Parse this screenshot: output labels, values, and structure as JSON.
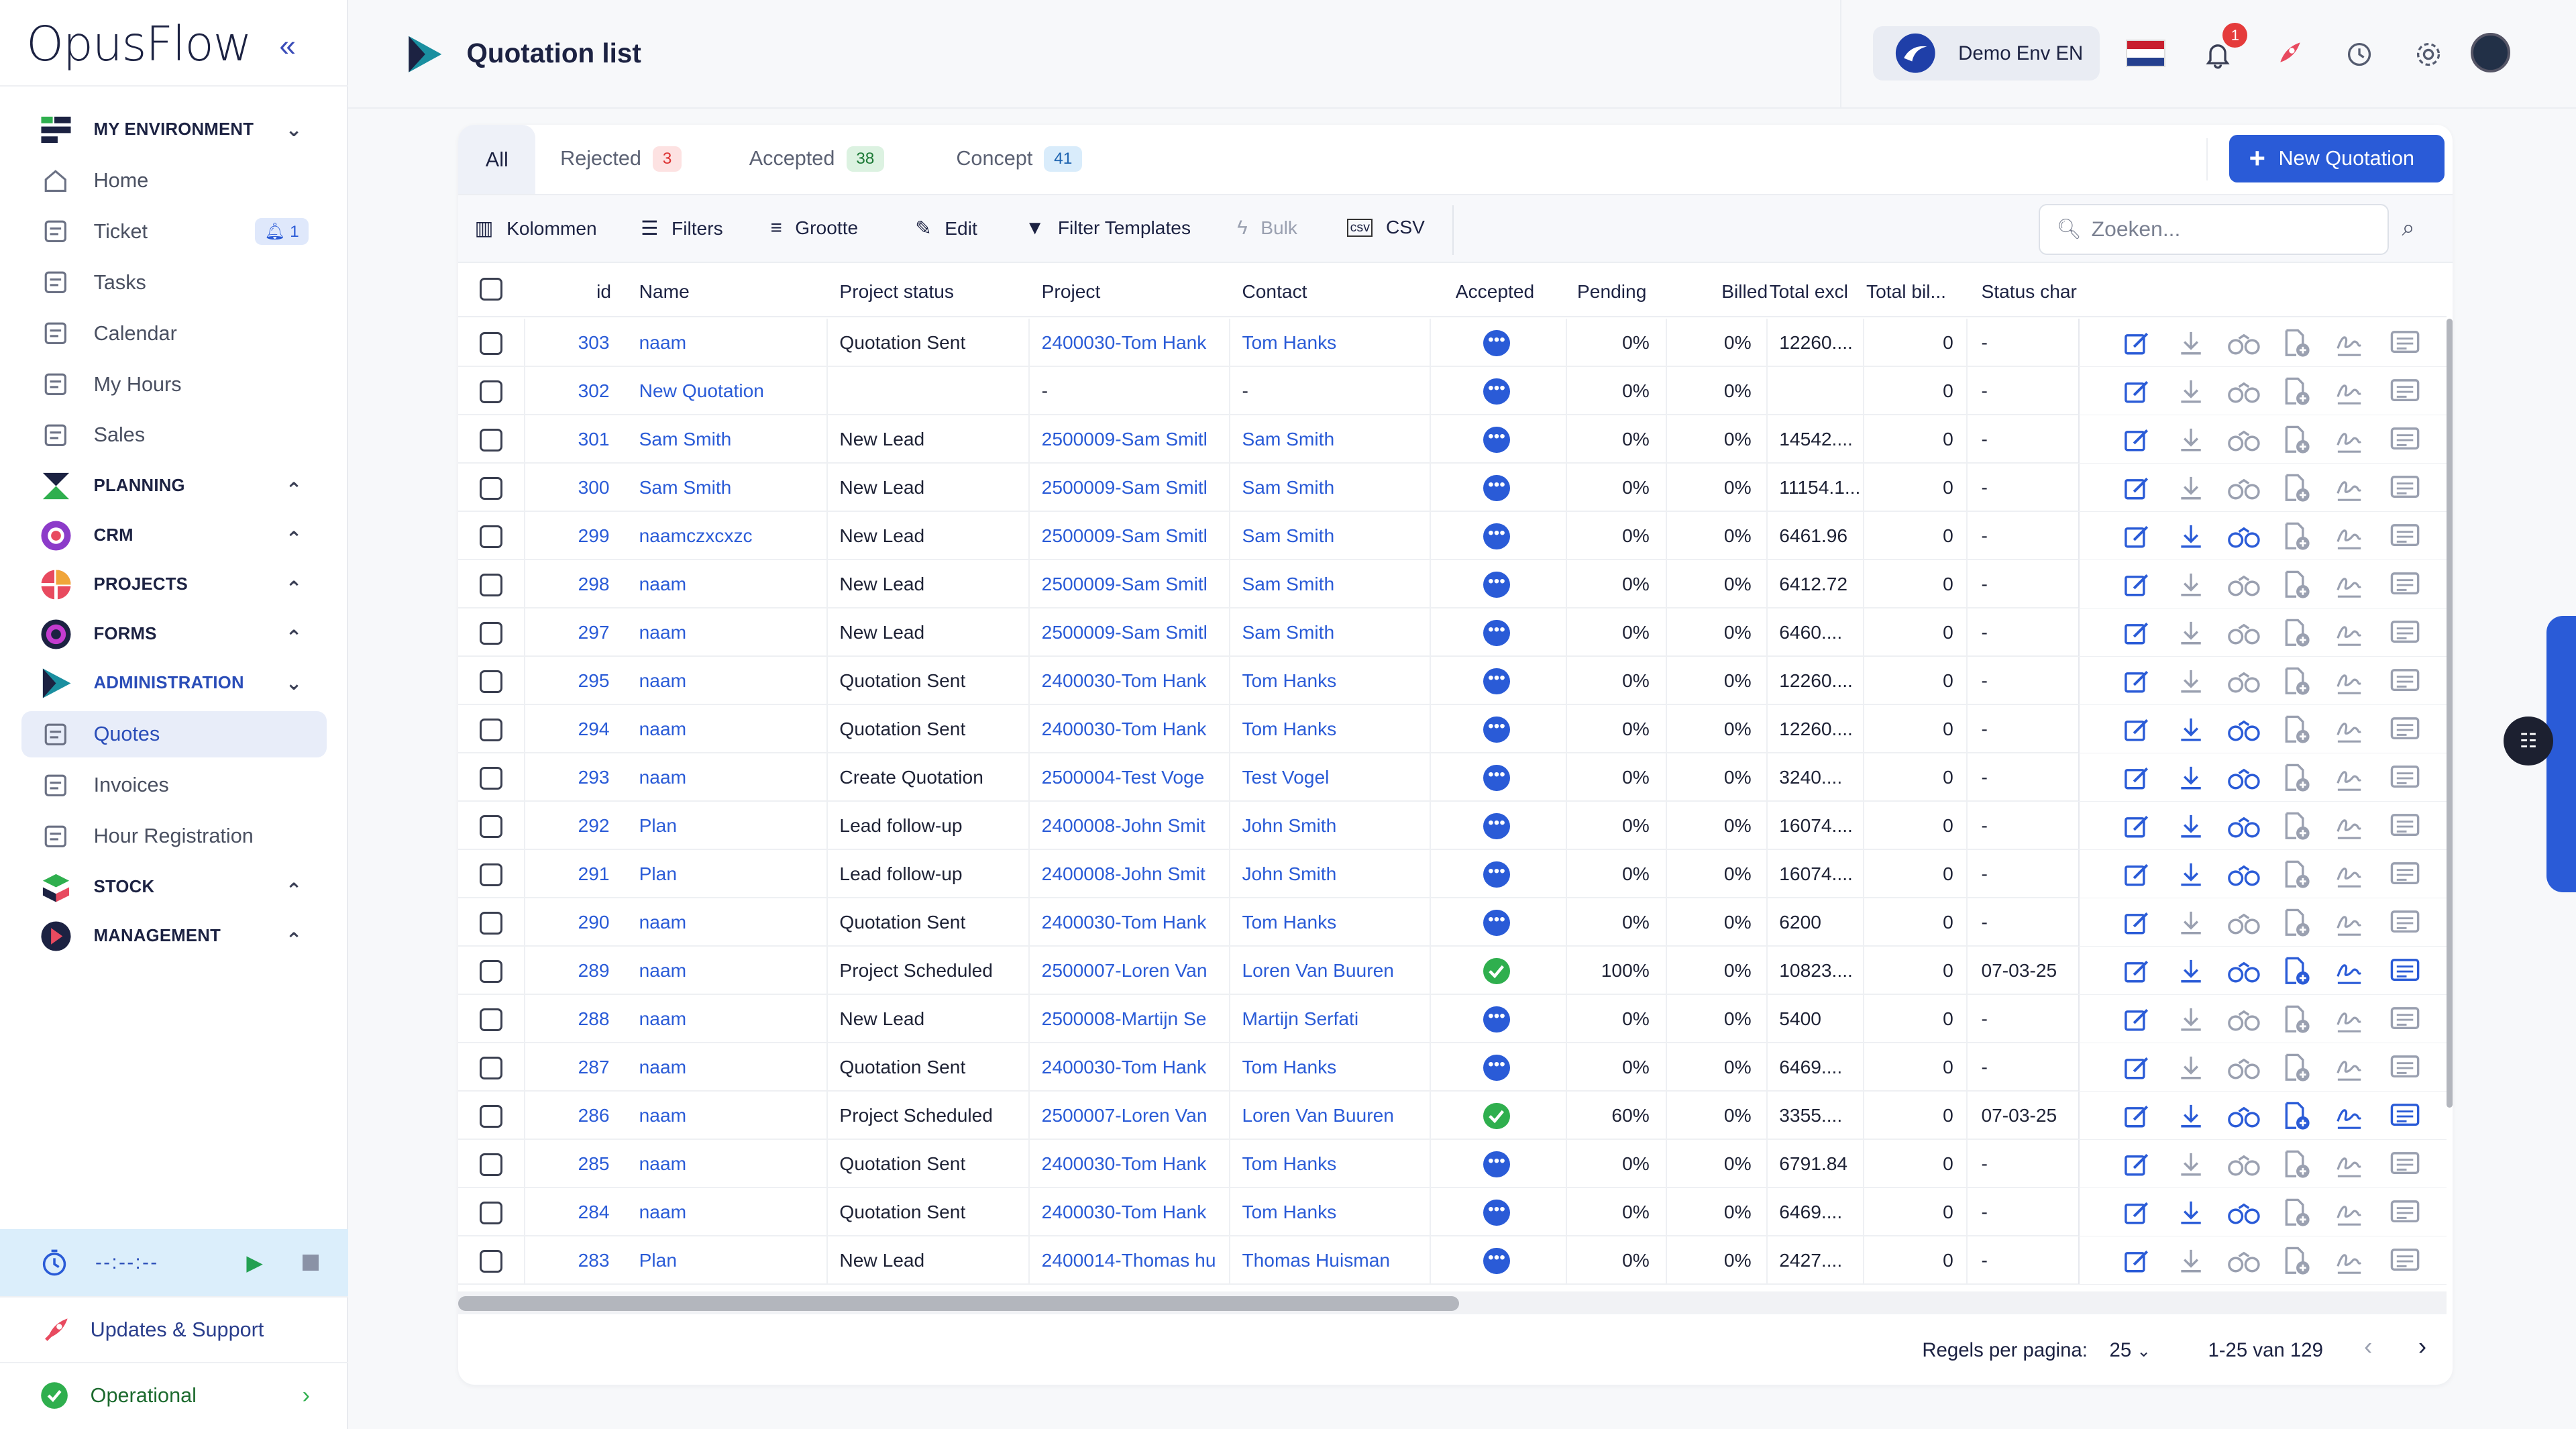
{
  "app": {
    "logo": "OpusFlow"
  },
  "sidebar": {
    "sections": [
      {
        "label": "MY ENVIRONMENT",
        "chevron": "down"
      },
      {
        "label": "Home"
      },
      {
        "label": "Ticket",
        "badge": "1"
      },
      {
        "label": "Tasks"
      },
      {
        "label": "Calendar"
      },
      {
        "label": "My Hours"
      },
      {
        "label": "Sales"
      },
      {
        "label": "PLANNING",
        "chevron": "up"
      },
      {
        "label": "CRM",
        "chevron": "up"
      },
      {
        "label": "PROJECTS",
        "chevron": "up"
      },
      {
        "label": "FORMS",
        "chevron": "up"
      },
      {
        "label": "ADMINISTRATION",
        "chevron": "down"
      },
      {
        "label": "Quotes"
      },
      {
        "label": "Invoices"
      },
      {
        "label": "Hour Registration"
      },
      {
        "label": "STOCK",
        "chevron": "up"
      },
      {
        "label": "MANAGEMENT",
        "chevron": "up"
      }
    ],
    "timer": "--:--:--",
    "updates": "Updates & Support",
    "status": "Operational"
  },
  "header": {
    "title": "Quotation list",
    "env": "Demo Env EN",
    "notif_count": "1"
  },
  "tabs": {
    "all": "All",
    "rejected": {
      "label": "Rejected",
      "count": "3"
    },
    "accepted": {
      "label": "Accepted",
      "count": "38"
    },
    "concept": {
      "label": "Concept",
      "count": "41"
    },
    "new_button": "New Quotation"
  },
  "toolbar": {
    "columns": "Kolommen",
    "filters": "Filters",
    "size": "Grootte",
    "edit": "Edit",
    "templates": "Filter Templates",
    "bulk": "Bulk",
    "csv": "CSV",
    "search_placeholder": "Zoeken..."
  },
  "columns": [
    "id",
    "Name",
    "Project status",
    "Project",
    "Contact",
    "Accepted",
    "Pending",
    "Billed",
    "Total excl",
    "Total bil...",
    "Status char"
  ],
  "rows": [
    {
      "id": "303",
      "name": "naam",
      "status": "Quotation Sent",
      "project": "2400030-Tom Hank",
      "contact": "Tom Hanks",
      "accepted": "dots",
      "pending": "0%",
      "billed": "0%",
      "total": "12260....",
      "totalbil": "0",
      "statuschar": "-",
      "active": false
    },
    {
      "id": "302",
      "name": "New Quotation",
      "status": "",
      "project": "-",
      "contact": "-",
      "accepted": "dots",
      "pending": "0%",
      "billed": "0%",
      "total": "",
      "totalbil": "0",
      "statuschar": "-",
      "active": false,
      "plain": true
    },
    {
      "id": "301",
      "name": "Sam Smith",
      "status": "New Lead",
      "project": "2500009-Sam Smitl",
      "contact": "Sam Smith",
      "accepted": "dots",
      "pending": "0%",
      "billed": "0%",
      "total": "14542....",
      "totalbil": "0",
      "statuschar": "-",
      "active": false
    },
    {
      "id": "300",
      "name": "Sam Smith",
      "status": "New Lead",
      "project": "2500009-Sam Smitl",
      "contact": "Sam Smith",
      "accepted": "dots",
      "pending": "0%",
      "billed": "0%",
      "total": "11154.1...",
      "totalbil": "0",
      "statuschar": "-",
      "active": false
    },
    {
      "id": "299",
      "name": "naamczxcxzc",
      "status": "New Lead",
      "project": "2500009-Sam Smitl",
      "contact": "Sam Smith",
      "accepted": "dots",
      "pending": "0%",
      "billed": "0%",
      "total": "6461.96",
      "totalbil": "0",
      "statuschar": "-",
      "active": true
    },
    {
      "id": "298",
      "name": "naam",
      "status": "New Lead",
      "project": "2500009-Sam Smitl",
      "contact": "Sam Smith",
      "accepted": "dots",
      "pending": "0%",
      "billed": "0%",
      "total": "6412.72",
      "totalbil": "0",
      "statuschar": "-",
      "active": false
    },
    {
      "id": "297",
      "name": "naam",
      "status": "New Lead",
      "project": "2500009-Sam Smitl",
      "contact": "Sam Smith",
      "accepted": "dots",
      "pending": "0%",
      "billed": "0%",
      "total": "6460....",
      "totalbil": "0",
      "statuschar": "-",
      "active": false
    },
    {
      "id": "295",
      "name": "naam",
      "status": "Quotation Sent",
      "project": "2400030-Tom Hank",
      "contact": "Tom Hanks",
      "accepted": "dots",
      "pending": "0%",
      "billed": "0%",
      "total": "12260....",
      "totalbil": "0",
      "statuschar": "-",
      "active": false
    },
    {
      "id": "294",
      "name": "naam",
      "status": "Quotation Sent",
      "project": "2400030-Tom Hank",
      "contact": "Tom Hanks",
      "accepted": "dots",
      "pending": "0%",
      "billed": "0%",
      "total": "12260....",
      "totalbil": "0",
      "statuschar": "-",
      "active": true
    },
    {
      "id": "293",
      "name": "naam",
      "status": "Create Quotation",
      "project": "2500004-Test Voge",
      "contact": "Test Vogel",
      "accepted": "dots",
      "pending": "0%",
      "billed": "0%",
      "total": "3240....",
      "totalbil": "0",
      "statuschar": "-",
      "active": true
    },
    {
      "id": "292",
      "name": "Plan",
      "status": "Lead follow-up",
      "project": "2400008-John Smit",
      "contact": "John Smith",
      "accepted": "dots",
      "pending": "0%",
      "billed": "0%",
      "total": "16074....",
      "totalbil": "0",
      "statuschar": "-",
      "active": true
    },
    {
      "id": "291",
      "name": "Plan",
      "status": "Lead follow-up",
      "project": "2400008-John Smit",
      "contact": "John Smith",
      "accepted": "dots",
      "pending": "0%",
      "billed": "0%",
      "total": "16074....",
      "totalbil": "0",
      "statuschar": "-",
      "active": true
    },
    {
      "id": "290",
      "name": "naam",
      "status": "Quotation Sent",
      "project": "2400030-Tom Hank",
      "contact": "Tom Hanks",
      "accepted": "dots",
      "pending": "0%",
      "billed": "0%",
      "total": "6200",
      "totalbil": "0",
      "statuschar": "-",
      "active": false
    },
    {
      "id": "289",
      "name": "naam",
      "status": "Project Scheduled",
      "project": "2500007-Loren Van",
      "contact": "Loren Van Buuren",
      "accepted": "ok",
      "pending": "100%",
      "billed": "0%",
      "total": "10823....",
      "totalbil": "0",
      "statuschar": "07-03-25",
      "active": true,
      "full": true
    },
    {
      "id": "288",
      "name": "naam",
      "status": "New Lead",
      "project": "2500008-Martijn Se",
      "contact": "Martijn Serfati",
      "accepted": "dots",
      "pending": "0%",
      "billed": "0%",
      "total": "5400",
      "totalbil": "0",
      "statuschar": "-",
      "active": false
    },
    {
      "id": "287",
      "name": "naam",
      "status": "Quotation Sent",
      "project": "2400030-Tom Hank",
      "contact": "Tom Hanks",
      "accepted": "dots",
      "pending": "0%",
      "billed": "0%",
      "total": "6469....",
      "totalbil": "0",
      "statuschar": "-",
      "active": false
    },
    {
      "id": "286",
      "name": "naam",
      "status": "Project Scheduled",
      "project": "2500007-Loren Van",
      "contact": "Loren Van Buuren",
      "accepted": "ok",
      "pending": "60%",
      "billed": "0%",
      "total": "3355....",
      "totalbil": "0",
      "statuschar": "07-03-25",
      "active": true,
      "full": true
    },
    {
      "id": "285",
      "name": "naam",
      "status": "Quotation Sent",
      "project": "2400030-Tom Hank",
      "contact": "Tom Hanks",
      "accepted": "dots",
      "pending": "0%",
      "billed": "0%",
      "total": "6791.84",
      "totalbil": "0",
      "statuschar": "-",
      "active": false
    },
    {
      "id": "284",
      "name": "naam",
      "status": "Quotation Sent",
      "project": "2400030-Tom Hank",
      "contact": "Tom Hanks",
      "accepted": "dots",
      "pending": "0%",
      "billed": "0%",
      "total": "6469....",
      "totalbil": "0",
      "statuschar": "-",
      "active": true
    },
    {
      "id": "283",
      "name": "Plan",
      "status": "New Lead",
      "project": "2400014-Thomas hu",
      "contact": "Thomas Huisman",
      "accepted": "dots",
      "pending": "0%",
      "billed": "0%",
      "total": "2427....",
      "totalbil": "0",
      "statuschar": "-",
      "active": false
    }
  ],
  "pager": {
    "rows_label": "Regels per pagina:",
    "rows_value": "25",
    "range": "1-25 van 129"
  },
  "colors": {
    "accent": "#2a5bd7",
    "success": "#2faf4e",
    "danger": "#e53b3b"
  }
}
